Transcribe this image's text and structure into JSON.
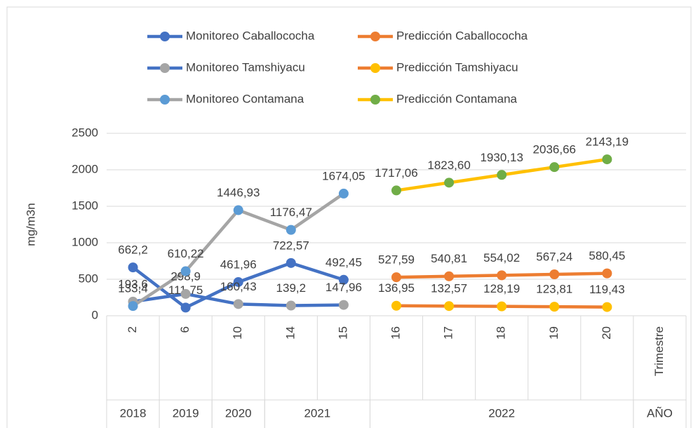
{
  "chart_data": {
    "type": "line",
    "y_label": "mg/m3n",
    "categories": [
      "2",
      "6",
      "10",
      "14",
      "15",
      "16",
      "17",
      "18",
      "19",
      "20",
      "Trimestre"
    ],
    "year_groups": [
      {
        "label": "2018",
        "start": 0,
        "end": 0
      },
      {
        "label": "2019",
        "start": 1,
        "end": 1
      },
      {
        "label": "2020",
        "start": 2,
        "end": 2
      },
      {
        "label": "2021",
        "start": 3,
        "end": 4
      },
      {
        "label": "2022",
        "start": 5,
        "end": 9
      },
      {
        "label": "AÑO",
        "start": 10,
        "end": 10
      }
    ],
    "ylim": [
      0,
      2500
    ],
    "yticks": [
      0,
      500,
      1000,
      1500,
      2000,
      2500
    ],
    "grid": true,
    "series": [
      {
        "name": "Monitoreo Caballococha",
        "color": "#4472c4",
        "marker_color": "#4472c4",
        "values": [
          662.2,
          111.75,
          461.96,
          722.57,
          492.45,
          null,
          null,
          null,
          null,
          null,
          null
        ],
        "value_labels": [
          "662,2",
          "111,75",
          "461,96",
          "722,57",
          "492,45",
          null,
          null,
          null,
          null,
          null,
          null
        ]
      },
      {
        "name": "Predicción Caballococha",
        "color": "#ed7d31",
        "marker_color": "#ed7d31",
        "values": [
          null,
          null,
          null,
          null,
          null,
          527.59,
          540.81,
          554.02,
          567.24,
          580.45,
          null
        ],
        "value_labels": [
          null,
          null,
          null,
          null,
          null,
          "527,59",
          "540,81",
          "554,02",
          "567,24",
          "580,45",
          null
        ]
      },
      {
        "name": "Monitoreo  Tamshiyacu",
        "color": "#4472c4",
        "marker_color": "#a5a5a5",
        "values": [
          193.6,
          298.9,
          160.43,
          139.2,
          147.96,
          null,
          null,
          null,
          null,
          null,
          null
        ],
        "value_labels": [
          "193,6",
          "298,9",
          "160,43",
          "139,2",
          "147,96",
          null,
          null,
          null,
          null,
          null,
          null
        ]
      },
      {
        "name": "Predicción Tamshiyacu",
        "color": "#ed7d31",
        "marker_color": "#ffc000",
        "values": [
          null,
          null,
          null,
          null,
          null,
          136.95,
          132.57,
          128.19,
          123.81,
          119.43,
          null
        ],
        "value_labels": [
          null,
          null,
          null,
          null,
          null,
          "136,95",
          "132,57",
          "128,19",
          "123,81",
          "119,43",
          null
        ]
      },
      {
        "name": "Monitoreo Contamana",
        "color": "#a5a5a5",
        "marker_color": "#5b9bd5",
        "values": [
          133.4,
          610.22,
          1446.93,
          1176.47,
          1674.05,
          null,
          null,
          null,
          null,
          null,
          null
        ],
        "value_labels": [
          "133,4",
          "610,22",
          "1446,93",
          "1176,47",
          "1674,05",
          null,
          null,
          null,
          null,
          null,
          null
        ]
      },
      {
        "name": "Predicción Contamana",
        "color": "#ffc000",
        "marker_color": "#70ad47",
        "values": [
          null,
          null,
          null,
          null,
          null,
          1717.06,
          1823.6,
          1930.13,
          2036.66,
          2143.19,
          null
        ],
        "value_labels": [
          null,
          null,
          null,
          null,
          null,
          "1717,06",
          "1823,60",
          "1930,13",
          "2036,66",
          "2143,19",
          null
        ]
      }
    ]
  }
}
